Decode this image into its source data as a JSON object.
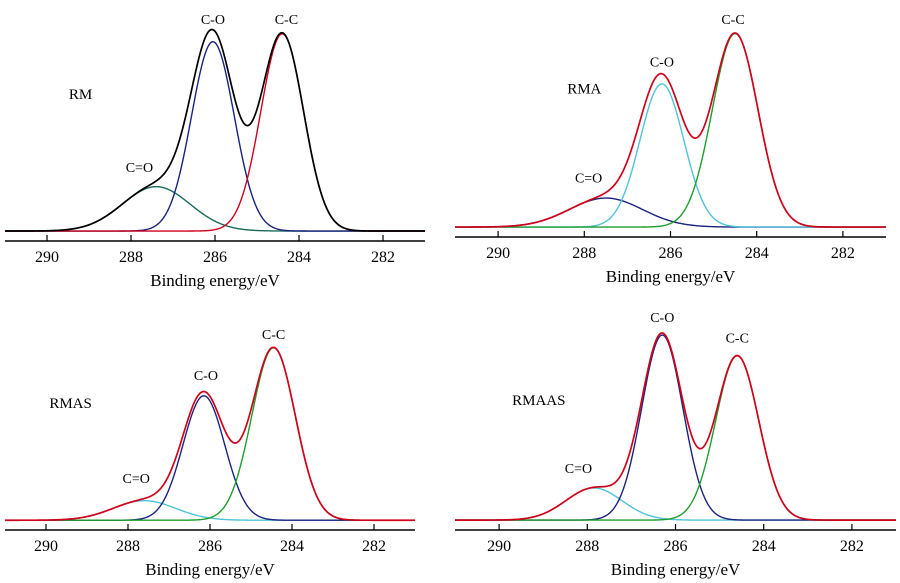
{
  "figure": {
    "type": "xps-c1s-grid",
    "background": "#ffffff",
    "axis_color": "#000000"
  },
  "chart_data": [
    {
      "type": "line",
      "sample_label": "RM",
      "xlabel": "Binding energy/eV",
      "xlim": [
        291,
        281
      ],
      "xticks": [
        290,
        288,
        286,
        284,
        282
      ],
      "y_axis_shown": false,
      "envelope": {
        "color": "#000000"
      },
      "baseline": 0.01,
      "ylim": [
        0,
        1.08
      ],
      "peaks": [
        {
          "label": "C=O",
          "center": 287.4,
          "height": 0.225,
          "fwhm": 1.9,
          "color": "#1a6b5c"
        },
        {
          "label": "C-O",
          "center": 286.05,
          "height": 0.96,
          "fwhm": 1.2,
          "color": "#1a237e"
        },
        {
          "label": "C-C",
          "center": 284.4,
          "height": 1.0,
          "fwhm": 1.2,
          "color": "#d0021b"
        }
      ],
      "labels": [
        {
          "text": "C-O",
          "x": 286.05,
          "y": 1.06
        },
        {
          "text": "C-C",
          "x": 284.3,
          "y": 1.06
        },
        {
          "text": "C=O",
          "x": 287.8,
          "y": 0.31
        },
        {
          "text": "RM",
          "x": 289.2,
          "y": 0.68
        }
      ]
    },
    {
      "type": "line",
      "sample_label": "RMA",
      "xlabel": "Binding energy/eV",
      "xlim": [
        291,
        281
      ],
      "xticks": [
        290,
        288,
        286,
        284,
        282
      ],
      "y_axis_shown": false,
      "envelope": {
        "color": "#d0021b"
      },
      "baseline": 0.01,
      "ylim": [
        0,
        1.08
      ],
      "peaks": [
        {
          "label": "C=O",
          "center": 287.5,
          "height": 0.15,
          "fwhm": 2.0,
          "color": "#1a237e"
        },
        {
          "label": "C-O",
          "center": 286.2,
          "height": 0.74,
          "fwhm": 1.2,
          "color": "#4fc3d9"
        },
        {
          "label": "C-C",
          "center": 284.5,
          "height": 1.0,
          "fwhm": 1.25,
          "color": "#1e9e2c"
        }
      ],
      "labels": [
        {
          "text": "C-O",
          "x": 286.2,
          "y": 0.84
        },
        {
          "text": "C-C",
          "x": 284.55,
          "y": 1.06
        },
        {
          "text": "C=O",
          "x": 287.9,
          "y": 0.24
        },
        {
          "text": "RMA",
          "x": 288.0,
          "y": 0.7
        }
      ]
    },
    {
      "type": "line",
      "sample_label": "RMAS",
      "xlabel": "Binding energy/eV",
      "xlim": [
        291,
        281
      ],
      "xticks": [
        290,
        288,
        286,
        284,
        282
      ],
      "y_axis_shown": false,
      "envelope": {
        "color": "#d0021b"
      },
      "baseline": 0.01,
      "ylim": [
        0,
        1.08
      ],
      "peaks": [
        {
          "label": "C=O",
          "center": 287.6,
          "height": 0.11,
          "fwhm": 1.8,
          "color": "#4fc3d9"
        },
        {
          "label": "C-O",
          "center": 286.15,
          "height": 0.7,
          "fwhm": 1.2,
          "color": "#1a237e"
        },
        {
          "label": "C-C",
          "center": 284.45,
          "height": 0.97,
          "fwhm": 1.25,
          "color": "#1e9e2c"
        }
      ],
      "labels": [
        {
          "text": "C-O",
          "x": 286.1,
          "y": 0.8
        },
        {
          "text": "C-C",
          "x": 284.45,
          "y": 1.03
        },
        {
          "text": "C=O",
          "x": 287.8,
          "y": 0.22
        },
        {
          "text": "RMAS",
          "x": 289.4,
          "y": 0.64
        }
      ]
    },
    {
      "type": "line",
      "sample_label": "RMAAS",
      "xlabel": "Binding energy/eV",
      "xlim": [
        291,
        281
      ],
      "xticks": [
        290,
        288,
        286,
        284,
        282
      ],
      "y_axis_shown": false,
      "envelope": {
        "color": "#d0021b"
      },
      "baseline": 0.01,
      "ylim": [
        0,
        1.08
      ],
      "peaks": [
        {
          "label": "C=O",
          "center": 287.85,
          "height": 0.17,
          "fwhm": 1.5,
          "color": "#4fc3d9"
        },
        {
          "label": "C-O",
          "center": 286.3,
          "height": 0.98,
          "fwhm": 1.1,
          "color": "#1a237e"
        },
        {
          "label": "C-C",
          "center": 284.6,
          "height": 0.87,
          "fwhm": 1.15,
          "color": "#1e9e2c"
        }
      ],
      "labels": [
        {
          "text": "C-O",
          "x": 286.3,
          "y": 1.06
        },
        {
          "text": "C-C",
          "x": 284.6,
          "y": 0.95
        },
        {
          "text": "C=O",
          "x": 288.2,
          "y": 0.26
        },
        {
          "text": "RMAAS",
          "x": 289.1,
          "y": 0.62
        }
      ]
    }
  ]
}
